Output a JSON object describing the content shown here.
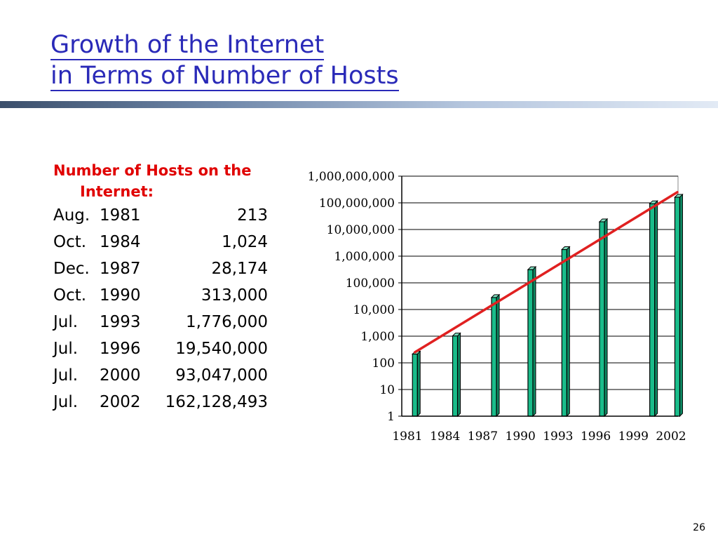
{
  "title": {
    "line1": "Growth of the Internet",
    "line2": "in Terms of Number of Hosts"
  },
  "list": {
    "heading_line1": "Number of Hosts on the",
    "heading_line2": "Internet:",
    "rows": [
      {
        "month": "Aug.",
        "year": "1981",
        "value": "213"
      },
      {
        "month": "Oct.",
        "year": "1984",
        "value": "1,024"
      },
      {
        "month": "Dec.",
        "year": "1987",
        "value": "28,174"
      },
      {
        "month": "Oct.",
        "year": "1990",
        "value": "313,000"
      },
      {
        "month": "Jul.",
        "year": "1993",
        "value": "1,776,000"
      },
      {
        "month": "Jul.",
        "year": "1996",
        "value": "19,540,000"
      },
      {
        "month": "Jul.",
        "year": "2000",
        "value": "93,047,000"
      },
      {
        "month": "Jul.",
        "year": "2002",
        "value": "162,128,493"
      }
    ]
  },
  "chart_data": {
    "type": "bar",
    "yscale": "log",
    "ylim": [
      1,
      1000000000
    ],
    "xlim": [
      1981,
      2002
    ],
    "xticks": [
      "1981",
      "1984",
      "1987",
      "1990",
      "1993",
      "1996",
      "1999",
      "2002"
    ],
    "yticks": [
      "1",
      "10",
      "100",
      "1,000",
      "10,000",
      "100,000",
      "1,000,000",
      "10,000,000",
      "100,000,000",
      "1,000,000,000"
    ],
    "bars": [
      {
        "x": 1981.6,
        "value": 213
      },
      {
        "x": 1984.8,
        "value": 1024
      },
      {
        "x": 1987.9,
        "value": 28174
      },
      {
        "x": 1990.8,
        "value": 313000
      },
      {
        "x": 1993.5,
        "value": 1776000
      },
      {
        "x": 1996.5,
        "value": 19540000
      },
      {
        "x": 2000.5,
        "value": 93047000
      },
      {
        "x": 2002.5,
        "value": 162128493
      }
    ],
    "trendline": {
      "x": [
        1981.6,
        2002.5
      ],
      "y": [
        250,
        250000000
      ]
    },
    "grid": true,
    "colors": {
      "bar": "#1abc8a",
      "bar_outline": "#000000",
      "trend": "#e02020",
      "axis": "#000000"
    }
  },
  "slide_number": "26"
}
